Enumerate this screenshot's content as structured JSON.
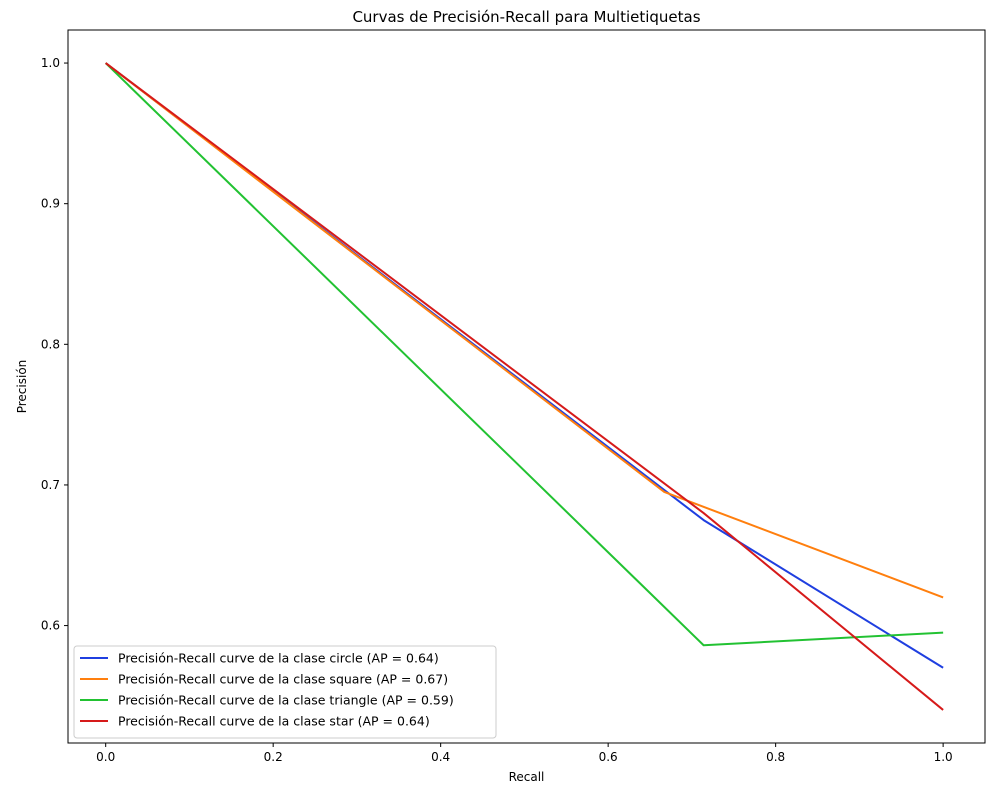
{
  "chart_data": {
    "type": "line",
    "title": "Curvas de Precisión-Recall para Multietiquetas",
    "xlabel": "Recall",
    "ylabel": "Precisión",
    "xlim": [
      -0.045,
      1.05
    ],
    "ylim": [
      0.5165,
      1.0235
    ],
    "xticks": [
      0.0,
      0.2,
      0.4,
      0.6,
      0.8,
      1.0
    ],
    "xtick_labels": [
      "0.0",
      "0.2",
      "0.4",
      "0.6",
      "0.8",
      "1.0"
    ],
    "yticks": [
      0.6,
      0.7,
      0.8,
      0.9,
      1.0
    ],
    "ytick_labels": [
      "0.6",
      "0.7",
      "0.8",
      "0.9",
      "1.0"
    ],
    "grid": false,
    "legend_position": "lower-left",
    "series": [
      {
        "name": "Precisión-Recall curve de la clase circle (AP = 0.64)",
        "color": "#1f3fe0",
        "x": [
          0.0,
          0.714,
          1.0
        ],
        "y": [
          1.0,
          0.675,
          0.57
        ]
      },
      {
        "name": "Precisión-Recall curve de la clase square (AP = 0.67)",
        "color": "#ff7f0e",
        "x": [
          0.0,
          0.667,
          1.0
        ],
        "y": [
          1.0,
          0.695,
          0.62
        ]
      },
      {
        "name": "Precisión-Recall curve de la clase triangle (AP = 0.59)",
        "color": "#22c232",
        "x": [
          0.0,
          0.714,
          1.0
        ],
        "y": [
          1.0,
          0.586,
          0.595
        ]
      },
      {
        "name": "Precisión-Recall curve de la clase star (AP = 0.64)",
        "color": "#d61a1a",
        "x": [
          0.0,
          0.714,
          1.0
        ],
        "y": [
          1.0,
          0.68,
          0.54
        ]
      }
    ]
  }
}
